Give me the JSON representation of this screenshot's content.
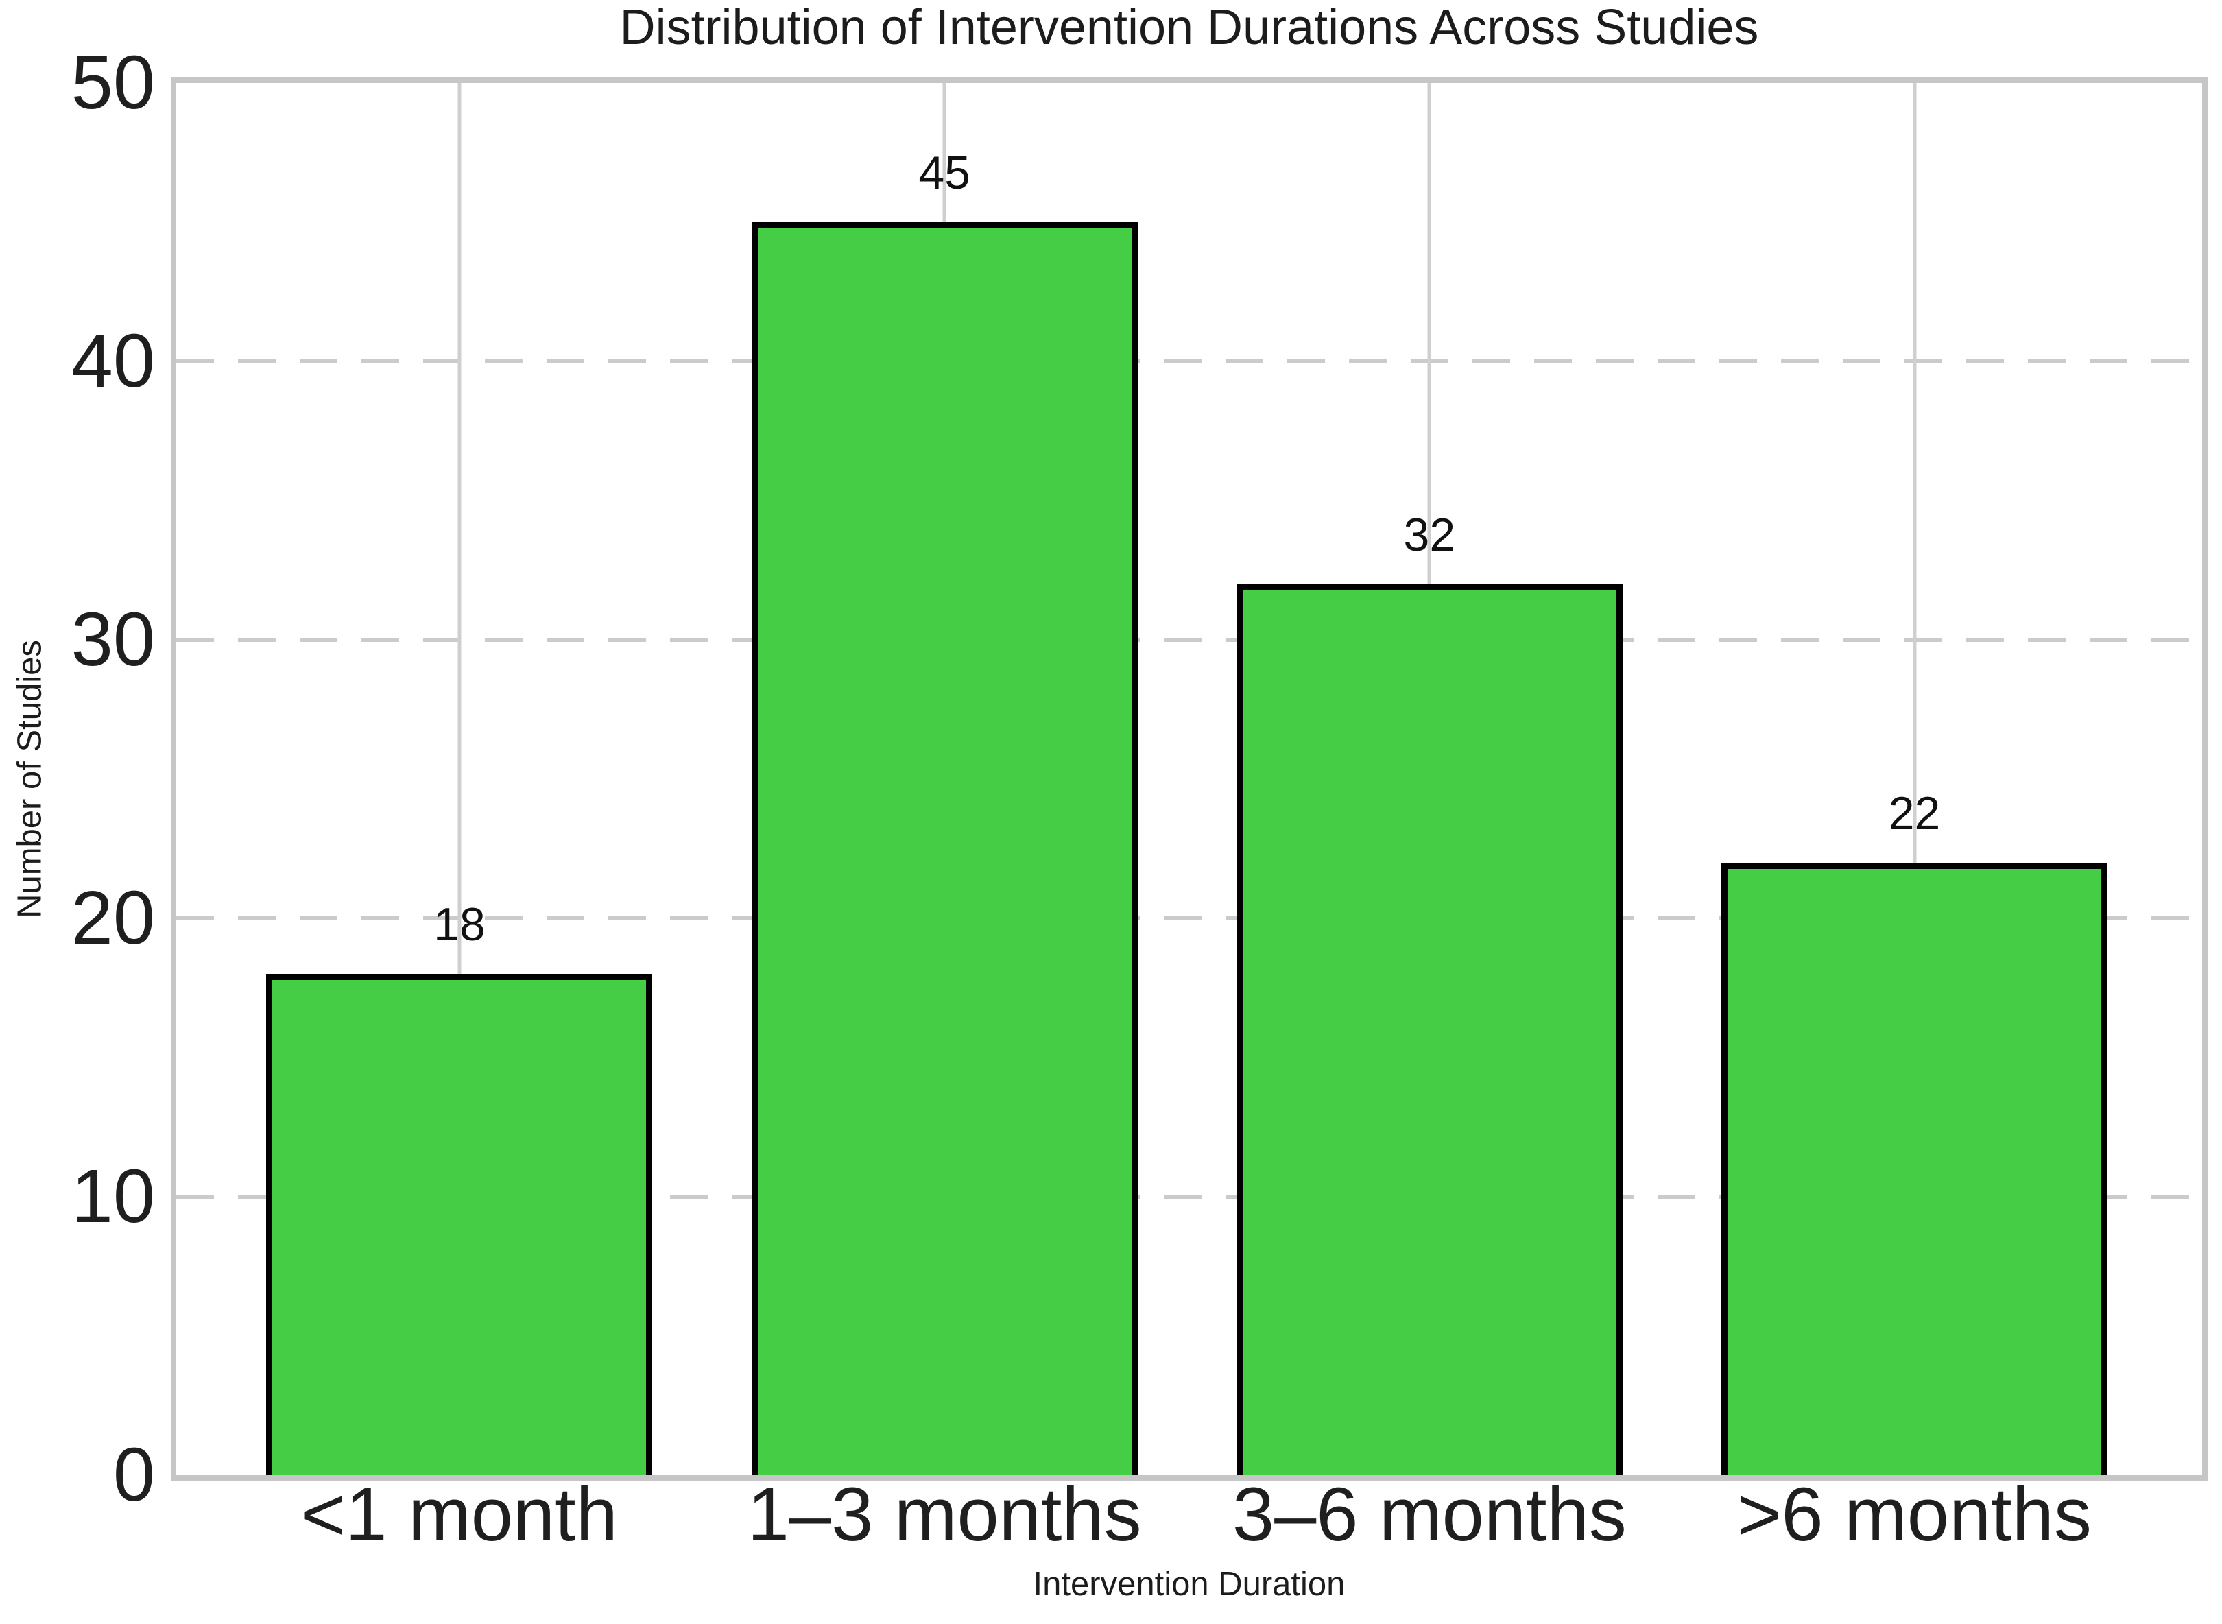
{
  "chart_data": {
    "type": "bar",
    "title": "Distribution of Intervention Durations Across Studies",
    "xlabel": "Intervention Duration",
    "ylabel": "Number of Studies",
    "categories": [
      "<1 month",
      "1–3 months",
      "3–6 months",
      ">6 months"
    ],
    "values": [
      18,
      45,
      32,
      22
    ],
    "value_labels": [
      "18",
      "45",
      "32",
      "22"
    ],
    "ylim": [
      0,
      50
    ],
    "yticks": [
      0,
      10,
      20,
      30,
      40,
      50
    ],
    "bar_color": "#45cd45",
    "bar_edge_color": "#000000",
    "grid": {
      "horizontal_style": "dashed",
      "vertical_style": "solid",
      "color": "#cbcbcb",
      "spine_color": "#c6c6c6"
    },
    "legend": null,
    "background": "#ffffff"
  }
}
